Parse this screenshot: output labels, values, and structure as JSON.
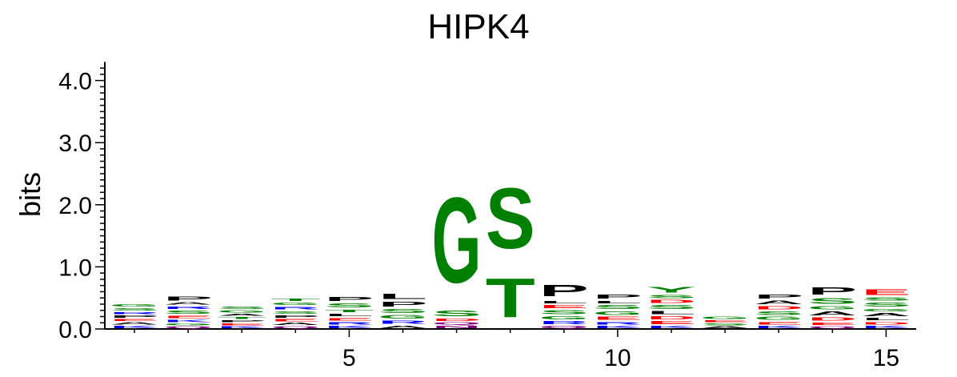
{
  "chart_data": {
    "type": "sequence-logo",
    "title": "HIPK4",
    "ylabel": "bits",
    "ylim": [
      0,
      4.3
    ],
    "y_ticks": [
      {
        "value": 0.0,
        "label": "0.0"
      },
      {
        "value": 1.0,
        "label": "1.0"
      },
      {
        "value": 2.0,
        "label": "2.0"
      },
      {
        "value": 3.0,
        "label": "3.0"
      },
      {
        "value": 4.0,
        "label": "4.0"
      }
    ],
    "x_ticks": [
      {
        "value": 5,
        "label": "5"
      },
      {
        "value": 10,
        "label": "10"
      },
      {
        "value": 15,
        "label": "15"
      }
    ],
    "positions": [
      1,
      2,
      3,
      4,
      5,
      6,
      7,
      8,
      9,
      10,
      11,
      12,
      13,
      14,
      15
    ],
    "colors": {
      "hydrophobic": "#000000",
      "polar": "#008000",
      "acidic": "#ff0000",
      "basic": "#0000ff",
      "neutral": "#800080"
    },
    "stacks": [
      {
        "position": 1,
        "letters": [
          {
            "char": "K",
            "color": "#0000ff",
            "bits": 0.06
          },
          {
            "char": "A",
            "color": "#000000",
            "bits": 0.06
          },
          {
            "char": "E",
            "color": "#ff0000",
            "bits": 0.05
          },
          {
            "char": "P",
            "color": "#000000",
            "bits": 0.06
          },
          {
            "char": "R",
            "color": "#0000ff",
            "bits": 0.05
          },
          {
            "char": "S",
            "color": "#008000",
            "bits": 0.07
          },
          {
            "char": "G",
            "color": "#008000",
            "bits": 0.07
          }
        ]
      },
      {
        "position": 2,
        "letters": [
          {
            "char": "Q",
            "color": "#800080",
            "bits": 0.05
          },
          {
            "char": "G",
            "color": "#008000",
            "bits": 0.05
          },
          {
            "char": "K",
            "color": "#0000ff",
            "bits": 0.06
          },
          {
            "char": "E",
            "color": "#ff0000",
            "bits": 0.07
          },
          {
            "char": "S",
            "color": "#008000",
            "bits": 0.08
          },
          {
            "char": "R",
            "color": "#0000ff",
            "bits": 0.07
          },
          {
            "char": "A",
            "color": "#000000",
            "bits": 0.06
          },
          {
            "char": "P",
            "color": "#000000",
            "bits": 0.1
          }
        ]
      },
      {
        "position": 3,
        "letters": [
          {
            "char": "K",
            "color": "#0000ff",
            "bits": 0.05
          },
          {
            "char": "E",
            "color": "#ff0000",
            "bits": 0.05
          },
          {
            "char": "P",
            "color": "#000000",
            "bits": 0.05
          },
          {
            "char": "T",
            "color": "#008000",
            "bits": 0.05
          },
          {
            "char": "A",
            "color": "#000000",
            "bits": 0.05
          },
          {
            "char": "G",
            "color": "#008000",
            "bits": 0.06
          },
          {
            "char": "S",
            "color": "#008000",
            "bits": 0.07
          }
        ]
      },
      {
        "position": 4,
        "letters": [
          {
            "char": "Q",
            "color": "#800080",
            "bits": 0.05
          },
          {
            "char": "A",
            "color": "#000000",
            "bits": 0.06
          },
          {
            "char": "E",
            "color": "#ff0000",
            "bits": 0.06
          },
          {
            "char": "P",
            "color": "#000000",
            "bits": 0.06
          },
          {
            "char": "S",
            "color": "#008000",
            "bits": 0.07
          },
          {
            "char": "R",
            "color": "#0000ff",
            "bits": 0.07
          },
          {
            "char": "G",
            "color": "#008000",
            "bits": 0.07
          },
          {
            "char": "T",
            "color": "#008000",
            "bits": 0.06
          }
        ]
      },
      {
        "position": 5,
        "letters": [
          {
            "char": "K",
            "color": "#0000ff",
            "bits": 0.06
          },
          {
            "char": "R",
            "color": "#0000ff",
            "bits": 0.06
          },
          {
            "char": "E",
            "color": "#ff0000",
            "bits": 0.07
          },
          {
            "char": "L",
            "color": "#000000",
            "bits": 0.07
          },
          {
            "char": "T",
            "color": "#008000",
            "bits": 0.07
          },
          {
            "char": "S",
            "color": "#008000",
            "bits": 0.1
          },
          {
            "char": "P",
            "color": "#000000",
            "bits": 0.1
          }
        ]
      },
      {
        "position": 6,
        "letters": [
          {
            "char": "A",
            "color": "#000000",
            "bits": 0.07
          },
          {
            "char": "R",
            "color": "#0000ff",
            "bits": 0.08
          },
          {
            "char": "G",
            "color": "#008000",
            "bits": 0.09
          },
          {
            "char": "S",
            "color": "#008000",
            "bits": 0.1
          },
          {
            "char": "P",
            "color": "#000000",
            "bits": 0.12
          },
          {
            "char": "L",
            "color": "#000000",
            "bits": 0.13
          }
        ]
      },
      {
        "position": 7,
        "letters": [
          {
            "char": "N",
            "color": "#800080",
            "bits": 0.06
          },
          {
            "char": "Q",
            "color": "#800080",
            "bits": 0.06
          },
          {
            "char": "D",
            "color": "#ff0000",
            "bits": 0.06
          },
          {
            "char": "S",
            "color": "#008000",
            "bits": 0.14
          },
          {
            "char": "G",
            "color": "#008000",
            "bits": 2.2
          }
        ]
      },
      {
        "position": 8,
        "letters": [
          {
            "char": "T",
            "color": "#008000",
            "bits": 1.0
          },
          {
            "char": "S",
            "color": "#008000",
            "bits": 1.55
          }
        ]
      },
      {
        "position": 9,
        "letters": [
          {
            "char": "Q",
            "color": "#800080",
            "bits": 0.06
          },
          {
            "char": "R",
            "color": "#0000ff",
            "bits": 0.08
          },
          {
            "char": "G",
            "color": "#008000",
            "bits": 0.08
          },
          {
            "char": "S",
            "color": "#008000",
            "bits": 0.1
          },
          {
            "char": "E",
            "color": "#ff0000",
            "bits": 0.08
          },
          {
            "char": "L",
            "color": "#000000",
            "bits": 0.07
          },
          {
            "char": "P",
            "color": "#000000",
            "bits": 0.3
          }
        ]
      },
      {
        "position": 10,
        "letters": [
          {
            "char": "K",
            "color": "#0000ff",
            "bits": 0.06
          },
          {
            "char": "R",
            "color": "#0000ff",
            "bits": 0.07
          },
          {
            "char": "E",
            "color": "#ff0000",
            "bits": 0.08
          },
          {
            "char": "G",
            "color": "#008000",
            "bits": 0.09
          },
          {
            "char": "S",
            "color": "#008000",
            "bits": 0.1
          },
          {
            "char": "L",
            "color": "#000000",
            "bits": 0.07
          },
          {
            "char": "P",
            "color": "#000000",
            "bits": 0.1
          }
        ]
      },
      {
        "position": 11,
        "letters": [
          {
            "char": "K",
            "color": "#0000ff",
            "bits": 0.06
          },
          {
            "char": "E",
            "color": "#ff0000",
            "bits": 0.08
          },
          {
            "char": "D",
            "color": "#ff0000",
            "bits": 0.08
          },
          {
            "char": "L",
            "color": "#000000",
            "bits": 0.08
          },
          {
            "char": "S",
            "color": "#008000",
            "bits": 0.1
          },
          {
            "char": "D",
            "color": "#ff0000",
            "bits": 0.08
          },
          {
            "char": "S",
            "color": "#008000",
            "bits": 0.08
          },
          {
            "char": "Y",
            "color": "#008000",
            "bits": 0.15
          }
        ]
      },
      {
        "position": 12,
        "letters": [
          {
            "char": "A",
            "color": "#000000",
            "bits": 0.05
          },
          {
            "char": "S",
            "color": "#008000",
            "bits": 0.05
          },
          {
            "char": "E",
            "color": "#ff0000",
            "bits": 0.05
          },
          {
            "char": "G",
            "color": "#008000",
            "bits": 0.07
          }
        ]
      },
      {
        "position": 13,
        "letters": [
          {
            "char": "K",
            "color": "#0000ff",
            "bits": 0.06
          },
          {
            "char": "E",
            "color": "#ff0000",
            "bits": 0.07
          },
          {
            "char": "G",
            "color": "#008000",
            "bits": 0.08
          },
          {
            "char": "S",
            "color": "#008000",
            "bits": 0.09
          },
          {
            "char": "D",
            "color": "#ff0000",
            "bits": 0.08
          },
          {
            "char": "A",
            "color": "#000000",
            "bits": 0.09
          },
          {
            "char": "P",
            "color": "#000000",
            "bits": 0.1
          }
        ]
      },
      {
        "position": 14,
        "letters": [
          {
            "char": "Q",
            "color": "#800080",
            "bits": 0.05
          },
          {
            "char": "E",
            "color": "#ff0000",
            "bits": 0.07
          },
          {
            "char": "D",
            "color": "#ff0000",
            "bits": 0.08
          },
          {
            "char": "A",
            "color": "#000000",
            "bits": 0.1
          },
          {
            "char": "G",
            "color": "#008000",
            "bits": 0.08
          },
          {
            "char": "S",
            "color": "#008000",
            "bits": 0.14
          },
          {
            "char": "P",
            "color": "#000000",
            "bits": 0.18
          }
        ]
      },
      {
        "position": 15,
        "letters": [
          {
            "char": "K",
            "color": "#0000ff",
            "bits": 0.06
          },
          {
            "char": "D",
            "color": "#ff0000",
            "bits": 0.07
          },
          {
            "char": "L",
            "color": "#000000",
            "bits": 0.06
          },
          {
            "char": "A",
            "color": "#000000",
            "bits": 0.08
          },
          {
            "char": "G",
            "color": "#008000",
            "bits": 0.07
          },
          {
            "char": "S",
            "color": "#008000",
            "bits": 0.1
          },
          {
            "char": "S",
            "color": "#008000",
            "bits": 0.08
          },
          {
            "char": "E",
            "color": "#ff0000",
            "bits": 0.15
          }
        ]
      }
    ]
  }
}
